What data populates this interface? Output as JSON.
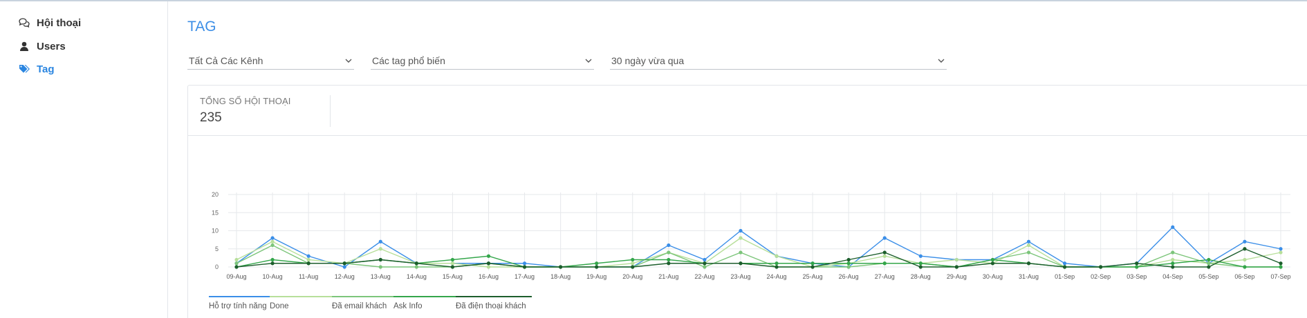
{
  "sidebar": {
    "items": [
      {
        "label": "Hội thoại",
        "icon": "chat-bubbles-icon"
      },
      {
        "label": "Users",
        "icon": "user-icon"
      },
      {
        "label": "Tag",
        "icon": "tags-icon",
        "active": true
      }
    ]
  },
  "page": {
    "title": "TAG"
  },
  "filters": {
    "channel": "Tất Cả Các Kênh",
    "tags": "Các tag phổ biến",
    "range": "30 ngày vừa qua"
  },
  "stats": {
    "label": "TỔNG SỐ HỘI THOẠI",
    "value": "235"
  },
  "colors": {
    "accent": "#2a85e0",
    "series": [
      "#3a8ee8",
      "#b7df9a",
      "#7cc57a",
      "#33a64a",
      "#1c5e2c"
    ]
  },
  "chart_data": {
    "type": "line",
    "x": [
      "09-Aug",
      "10-Aug",
      "11-Aug",
      "12-Aug",
      "13-Aug",
      "14-Aug",
      "15-Aug",
      "16-Aug",
      "17-Aug",
      "18-Aug",
      "19-Aug",
      "20-Aug",
      "21-Aug",
      "22-Aug",
      "23-Aug",
      "24-Aug",
      "25-Aug",
      "26-Aug",
      "27-Aug",
      "28-Aug",
      "29-Aug",
      "30-Aug",
      "31-Aug",
      "01-Sep",
      "02-Sep",
      "03-Sep",
      "04-Sep",
      "05-Sep",
      "06-Sep",
      "07-Sep"
    ],
    "yticks": [
      "0",
      "5",
      "10",
      "15",
      "20"
    ],
    "ylim": [
      0,
      20
    ],
    "series": [
      {
        "name": "Hỗ trợ tính năng",
        "values": [
          1,
          8,
          3,
          0,
          7,
          1,
          1,
          1,
          1,
          0,
          0,
          0,
          6,
          2,
          10,
          3,
          1,
          0,
          8,
          3,
          2,
          2,
          7,
          1,
          0,
          1,
          11,
          1,
          7,
          5
        ]
      },
      {
        "name": "Done",
        "values": [
          2,
          7,
          2,
          1,
          5,
          1,
          1,
          0,
          0,
          0,
          0,
          1,
          4,
          1,
          8,
          3,
          0,
          1,
          3,
          1,
          2,
          1,
          6,
          0,
          0,
          0,
          2,
          1,
          2,
          4
        ]
      },
      {
        "name": "Đã email khách",
        "values": [
          1,
          6,
          1,
          1,
          0,
          0,
          0,
          1,
          0,
          0,
          0,
          0,
          4,
          0,
          4,
          0,
          0,
          0,
          1,
          1,
          0,
          2,
          4,
          0,
          0,
          0,
          4,
          1,
          0,
          0
        ]
      },
      {
        "name": "Ask Info",
        "values": [
          0,
          2,
          1,
          1,
          2,
          1,
          2,
          3,
          0,
          0,
          1,
          2,
          2,
          1,
          1,
          1,
          1,
          1,
          1,
          1,
          0,
          2,
          1,
          0,
          0,
          0,
          1,
          2,
          0,
          0
        ]
      },
      {
        "name": "Đã điện thoại khách",
        "values": [
          0,
          1,
          1,
          1,
          2,
          1,
          0,
          1,
          0,
          0,
          0,
          0,
          1,
          1,
          1,
          0,
          0,
          2,
          4,
          0,
          0,
          1,
          1,
          0,
          0,
          1,
          0,
          0,
          5,
          1
        ]
      }
    ],
    "grid": true,
    "legend": "bottom-left"
  }
}
